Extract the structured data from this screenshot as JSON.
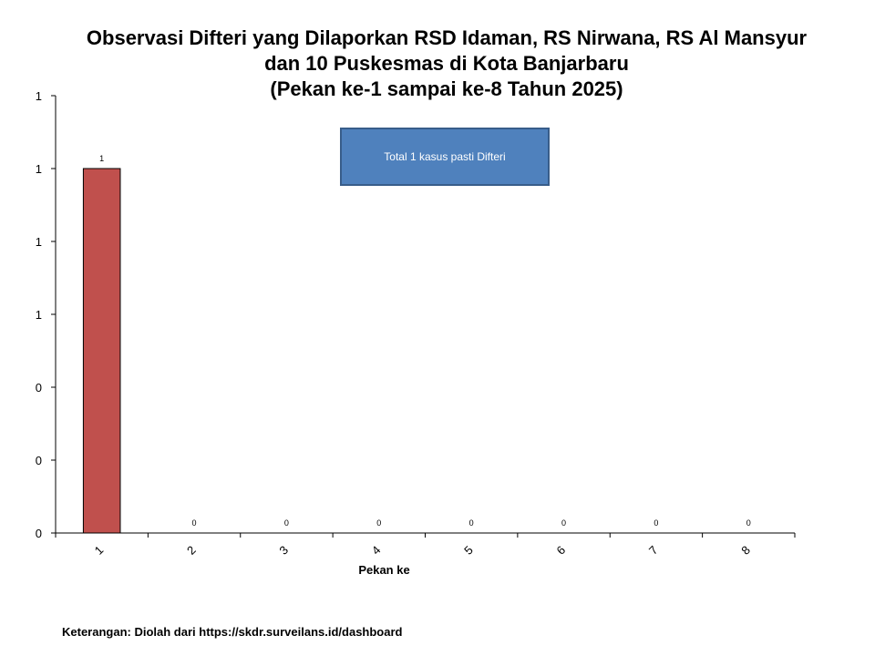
{
  "chart_data": {
    "type": "bar",
    "title_lines": [
      "Observasi Difteri yang Dilaporkan RSD Idaman, RS Nirwana, RS Al Mansyur",
      "dan 10 Puskesmas di Kota Banjarbaru",
      "(Pekan ke-1 sampai ke-8 Tahun 2025)"
    ],
    "categories": [
      "1",
      "2",
      "3",
      "4",
      "5",
      "6",
      "7",
      "8"
    ],
    "values": [
      1,
      0,
      0,
      0,
      0,
      0,
      0,
      0
    ],
    "data_labels": [
      "1",
      "0",
      "0",
      "0",
      "0",
      "0",
      "0",
      "0"
    ],
    "y_tick_labels": [
      "0",
      "0",
      "0",
      "1",
      "1",
      "1",
      "1"
    ],
    "ylim": [
      0,
      1.2
    ],
    "xlabel": "Pekan ke",
    "ylabel": "",
    "bar_color": "#c0504d",
    "bar_border_color": "#000000",
    "grid": false,
    "legend": "none",
    "annotation": "Total 1 kasus pasti Difteri",
    "annotation_color": "#4f81bd"
  },
  "footer": {
    "source": "Keterangan: Diolah dari https://skdr.surveilans.id/dashboard"
  }
}
